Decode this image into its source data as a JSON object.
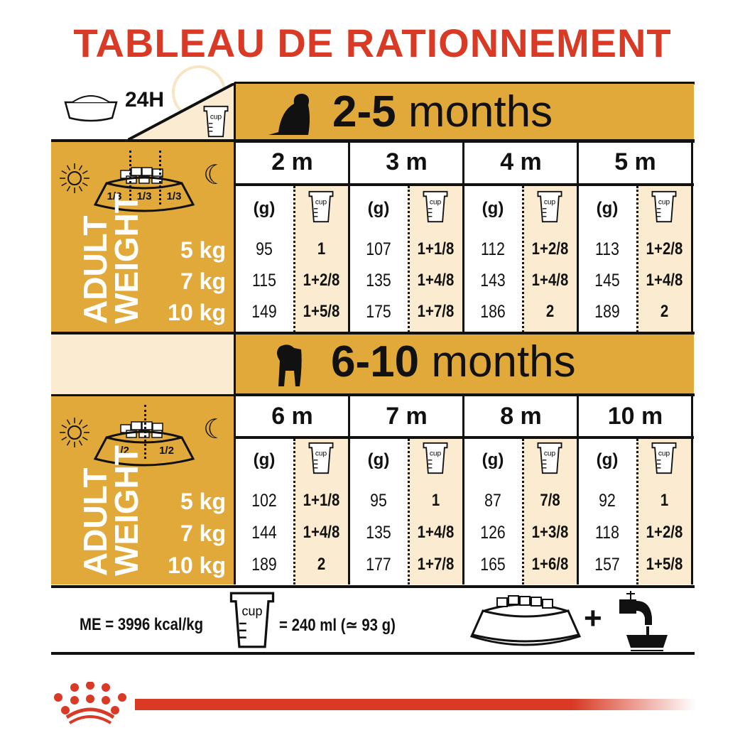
{
  "title": "TABLEAU DE RATIONNEMENT",
  "daily_label": "24H",
  "cup_label": "cup",
  "gram_label": "(g)",
  "adult_weight_label": [
    "ADULT",
    "WEIGHT"
  ],
  "weights": [
    "5 kg",
    "7 kg",
    "10 kg"
  ],
  "colors": {
    "gold": "#e0a93a",
    "cream": "#fbebd0",
    "brand_red": "#d93a26"
  },
  "sections": [
    {
      "age_range_bold": "2-5",
      "age_range_unit": "months",
      "meal_split": [
        "1/3",
        "1/3",
        "1/3"
      ],
      "months": [
        {
          "label": "2 m",
          "rows": [
            [
              "95",
              "1"
            ],
            [
              "115",
              "1+2/8"
            ],
            [
              "149",
              "1+5/8"
            ]
          ]
        },
        {
          "label": "3 m",
          "rows": [
            [
              "107",
              "1+1/8"
            ],
            [
              "135",
              "1+4/8"
            ],
            [
              "175",
              "1+7/8"
            ]
          ]
        },
        {
          "label": "4 m",
          "rows": [
            [
              "112",
              "1+2/8"
            ],
            [
              "143",
              "1+4/8"
            ],
            [
              "186",
              "2"
            ]
          ]
        },
        {
          "label": "5 m",
          "rows": [
            [
              "113",
              "1+2/8"
            ],
            [
              "145",
              "1+4/8"
            ],
            [
              "189",
              "2"
            ]
          ]
        }
      ]
    },
    {
      "age_range_bold": "6-10",
      "age_range_unit": "months",
      "meal_split": [
        "1/2",
        "1/2"
      ],
      "months": [
        {
          "label": "6 m",
          "rows": [
            [
              "102",
              "1+1/8"
            ],
            [
              "144",
              "1+4/8"
            ],
            [
              "189",
              "2"
            ]
          ]
        },
        {
          "label": "7 m",
          "rows": [
            [
              "95",
              "1"
            ],
            [
              "135",
              "1+4/8"
            ],
            [
              "177",
              "1+7/8"
            ]
          ]
        },
        {
          "label": "8 m",
          "rows": [
            [
              "87",
              "7/8"
            ],
            [
              "126",
              "1+3/8"
            ],
            [
              "165",
              "1+6/8"
            ]
          ]
        },
        {
          "label": "10 m",
          "rows": [
            [
              "92",
              "1"
            ],
            [
              "118",
              "1+2/8"
            ],
            [
              "157",
              "1+5/8"
            ]
          ]
        }
      ]
    }
  ],
  "footer": {
    "energy": "ME = 3996 kcal/kg",
    "cup_equivalence": "= 240 ml (≃ 93 g)",
    "plus": "+"
  },
  "icons": [
    "bowl-icon",
    "clock-icon",
    "cup-icon",
    "puppy-icon",
    "sun-icon",
    "moon-icon",
    "water-tap-icon",
    "royal-canin-logo"
  ]
}
